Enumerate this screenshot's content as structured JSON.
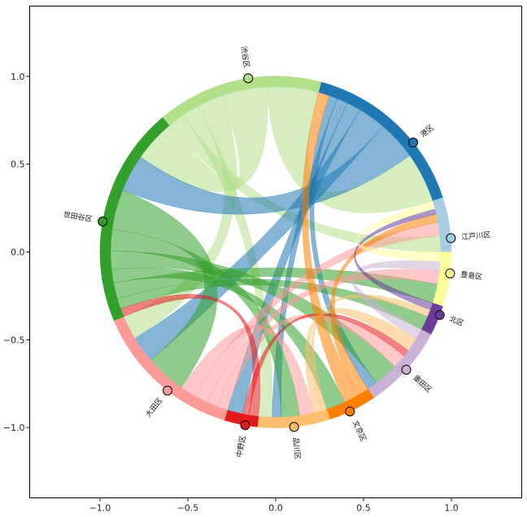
{
  "chart_data": {
    "type": "chord",
    "title": "",
    "xlabel": "",
    "ylabel": "",
    "xlim": [
      -1.4,
      1.4
    ],
    "ylim": [
      -1.4,
      1.4
    ],
    "x_ticks": [
      -1.0,
      -0.5,
      0.0,
      0.5,
      1.0
    ],
    "y_ticks": [
      -1.0,
      -0.5,
      0.0,
      0.5,
      1.0
    ],
    "x_tick_labels": [
      "−1.0",
      "−0.5",
      "0.0",
      "0.5",
      "1.0"
    ],
    "y_tick_labels": [
      "−1.0",
      "−0.5",
      "0.0",
      "0.5",
      "1.0"
    ],
    "grid": false,
    "legend": "none",
    "nodes": [
      {
        "name": "港区",
        "color": "#1f78b4",
        "start_deg": 18,
        "end_deg": 75,
        "marker_deg": 38.5
      },
      {
        "name": "江戸川区",
        "color": "#a6cee3",
        "start_deg": 0,
        "end_deg": 18,
        "marker_deg": 4.5
      },
      {
        "name": "豊島区",
        "color": "#ffff99",
        "start_deg": -18,
        "end_deg": 0,
        "marker_deg": -7
      },
      {
        "name": "北区",
        "color": "#6a3d9a",
        "start_deg": -28,
        "end_deg": -18,
        "marker_deg": -21
      },
      {
        "name": "墨田区",
        "color": "#cab2d6",
        "start_deg": -56,
        "end_deg": -28,
        "marker_deg": -42
      },
      {
        "name": "文京区",
        "color": "#ff7f00",
        "start_deg": -72,
        "end_deg": -56,
        "marker_deg": -65
      },
      {
        "name": "品川区",
        "color": "#fdbf6f",
        "start_deg": -96,
        "end_deg": -72,
        "marker_deg": -84
      },
      {
        "name": "中野区",
        "color": "#e31a1c",
        "start_deg": -107,
        "end_deg": -96,
        "marker_deg": -100
      },
      {
        "name": "大田区",
        "color": "#fb9a99",
        "start_deg": -157,
        "end_deg": -107,
        "marker_deg": -128
      },
      {
        "name": "世田谷区",
        "color": "#33a02c",
        "start_deg": -230,
        "end_deg": -157,
        "marker_deg": -190
      },
      {
        "name": "渋谷区",
        "color": "#b2df8a",
        "start_deg": -285,
        "end_deg": -230,
        "marker_deg": -261
      }
    ],
    "links": [
      {
        "source": "渋谷区",
        "target": "港区",
        "value": 18
      },
      {
        "source": "渋谷区",
        "target": "世田谷区",
        "value": 16
      },
      {
        "source": "渋谷区",
        "target": "大田区",
        "value": 9
      },
      {
        "source": "渋谷区",
        "target": "品川区",
        "value": 6
      },
      {
        "source": "渋谷区",
        "target": "江戸川区",
        "value": 6
      },
      {
        "source": "港区",
        "target": "世田谷区",
        "value": 14
      },
      {
        "source": "港区",
        "target": "大田区",
        "value": 10
      },
      {
        "source": "港区",
        "target": "中野区",
        "value": 5
      },
      {
        "source": "港区",
        "target": "品川区",
        "value": 4
      },
      {
        "source": "港区",
        "target": "墨田区",
        "value": 3
      },
      {
        "source": "世田谷区",
        "target": "大田区",
        "value": 15
      },
      {
        "source": "世田谷区",
        "target": "品川区",
        "value": 8
      },
      {
        "source": "世田谷区",
        "target": "墨田区",
        "value": 7
      },
      {
        "source": "世田谷区",
        "target": "文京区",
        "value": 5
      },
      {
        "source": "世田谷区",
        "target": "豊島区",
        "value": 6
      },
      {
        "source": "世田谷区",
        "target": "北区",
        "value": 4
      },
      {
        "source": "大田区",
        "target": "品川区",
        "value": 6
      },
      {
        "source": "大田区",
        "target": "江戸川区",
        "value": 5
      },
      {
        "source": "大田区",
        "target": "豊島区",
        "value": 4
      },
      {
        "source": "大田区",
        "target": "墨田区",
        "value": 4
      },
      {
        "source": "中野区",
        "target": "墨田区",
        "value": 2
      },
      {
        "source": "中野区",
        "target": "世田谷区",
        "value": 3
      },
      {
        "source": "品川区",
        "target": "墨田区",
        "value": 4
      },
      {
        "source": "品川区",
        "target": "北区",
        "value": 2
      },
      {
        "source": "文京区",
        "target": "港区",
        "value": 4
      },
      {
        "source": "文京区",
        "target": "江戸川区",
        "value": 3
      },
      {
        "source": "墨田区",
        "target": "豊島区",
        "value": 3
      },
      {
        "source": "北区",
        "target": "江戸川区",
        "value": 2
      },
      {
        "source": "豊島区",
        "target": "江戸川区",
        "value": 3
      }
    ]
  }
}
